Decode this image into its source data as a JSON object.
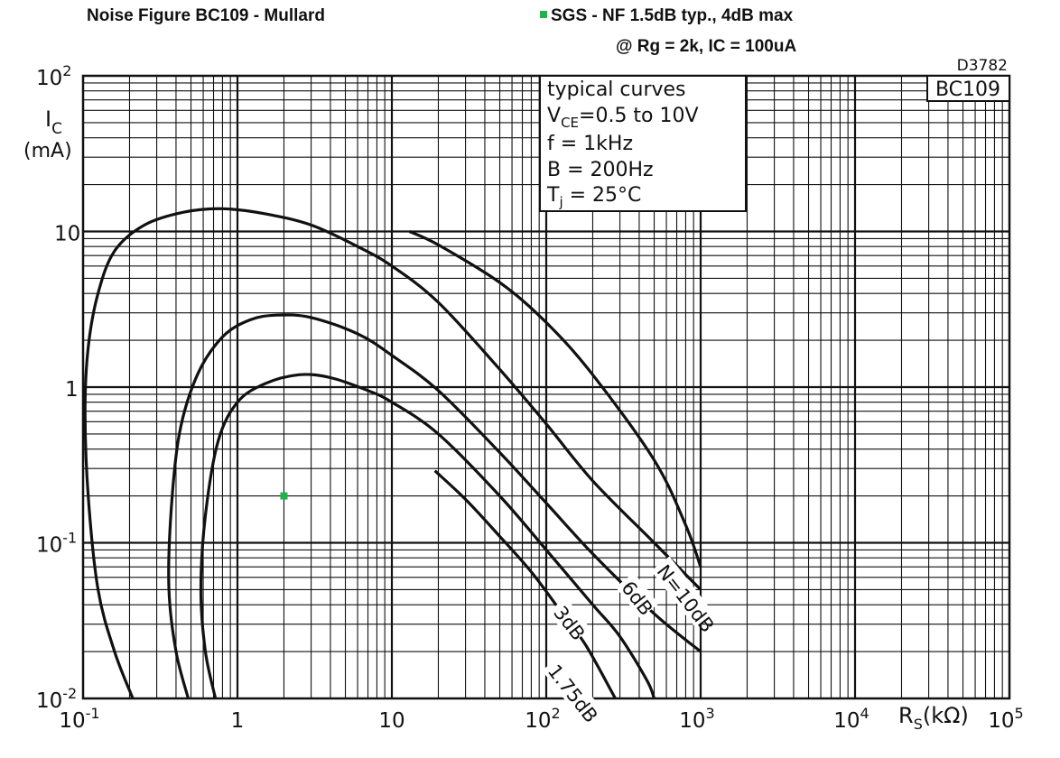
{
  "header": {
    "title": "Noise Figure BC109 - Mullard",
    "note_line1": "SGS - NF 1.5dB typ.,  4dB max",
    "note_line2": "@ Rg = 2k, IC = 100uA",
    "marker_color": "#22b14c"
  },
  "chart_data": {
    "type": "line",
    "code": "D3782",
    "device": "BC109",
    "xscale": "log",
    "yscale": "log",
    "xlim": [
      0.1,
      100000
    ],
    "ylim": [
      0.01,
      100
    ],
    "xlabel": "RS(kΩ)",
    "ylabel": "IC",
    "ylabel_unit": "(mA)",
    "xticks": [
      {
        "v": 0.1,
        "base": "10",
        "exp": "-1"
      },
      {
        "v": 1,
        "base": "1",
        "exp": ""
      },
      {
        "v": 10,
        "base": "10",
        "exp": ""
      },
      {
        "v": 100,
        "base": "10",
        "exp": "2"
      },
      {
        "v": 1000,
        "base": "10",
        "exp": "3"
      },
      {
        "v": 10000,
        "base": "10",
        "exp": "4"
      },
      {
        "v": 100000,
        "base": "10",
        "exp": "5"
      }
    ],
    "yticks": [
      {
        "v": 0.01,
        "base": "10",
        "exp": "-2"
      },
      {
        "v": 0.1,
        "base": "10",
        "exp": "-1"
      },
      {
        "v": 1,
        "base": "1",
        "exp": ""
      },
      {
        "v": 10,
        "base": "10",
        "exp": ""
      },
      {
        "v": 100,
        "base": "10",
        "exp": "2"
      }
    ],
    "grid": true,
    "conditions": {
      "line1": "typical curves",
      "vce_label": "V",
      "vce_sub": "CE",
      "vce_value": "=0.5 to 10V",
      "f": "f    = 1kHz",
      "b": "B   = 200Hz",
      "tj_label": "T",
      "tj_sub": "j",
      "tj_value": "  = 25°C"
    },
    "series": [
      {
        "name": "N=10dB",
        "points": [
          [
            0.21,
            0.01
          ],
          [
            0.16,
            0.02
          ],
          [
            0.125,
            0.05
          ],
          [
            0.108,
            0.2
          ],
          [
            0.103,
            0.7
          ],
          [
            0.108,
            1.8
          ],
          [
            0.125,
            4
          ],
          [
            0.16,
            7.5
          ],
          [
            0.25,
            11
          ],
          [
            0.45,
            13.3
          ],
          [
            0.8,
            14
          ],
          [
            1.5,
            13
          ],
          [
            3,
            11
          ],
          [
            6,
            8
          ],
          [
            10,
            6
          ],
          [
            20,
            3.5
          ],
          [
            50,
            1.3
          ],
          [
            100,
            0.58
          ],
          [
            200,
            0.25
          ],
          [
            500,
            0.1
          ],
          [
            1000,
            0.05
          ]
        ]
      },
      {
        "name": "N=10dB",
        "points": [
          [
            13,
            10
          ],
          [
            20,
            8.2
          ],
          [
            50,
            4.7
          ],
          [
            100,
            2.6
          ],
          [
            200,
            1.2
          ],
          [
            500,
            0.34
          ],
          [
            800,
            0.13
          ],
          [
            1000,
            0.07
          ]
        ]
      },
      {
        "name": "6dB",
        "points": [
          [
            0.48,
            0.01
          ],
          [
            0.4,
            0.02
          ],
          [
            0.36,
            0.05
          ],
          [
            0.37,
            0.15
          ],
          [
            0.42,
            0.5
          ],
          [
            0.55,
            1.2
          ],
          [
            0.8,
            2.1
          ],
          [
            1.2,
            2.7
          ],
          [
            1.8,
            2.9
          ],
          [
            3,
            2.8
          ],
          [
            6,
            2.2
          ],
          [
            10,
            1.6
          ],
          [
            20,
            0.95
          ],
          [
            50,
            0.38
          ],
          [
            100,
            0.18
          ],
          [
            200,
            0.085
          ],
          [
            500,
            0.035
          ],
          [
            1000,
            0.02
          ]
        ]
      },
      {
        "name": "3dB",
        "points": [
          [
            0.72,
            0.01
          ],
          [
            0.62,
            0.02
          ],
          [
            0.58,
            0.05
          ],
          [
            0.62,
            0.15
          ],
          [
            0.75,
            0.45
          ],
          [
            1,
            0.8
          ],
          [
            1.5,
            1.05
          ],
          [
            2.5,
            1.2
          ],
          [
            4,
            1.15
          ],
          [
            7,
            0.95
          ],
          [
            10,
            0.8
          ],
          [
            20,
            0.5
          ],
          [
            50,
            0.2
          ],
          [
            100,
            0.09
          ],
          [
            200,
            0.04
          ],
          [
            300,
            0.025
          ],
          [
            450,
            0.013
          ],
          [
            500,
            0.01
          ]
        ]
      },
      {
        "name": "1.75dB",
        "points": [
          [
            19,
            0.29
          ],
          [
            30,
            0.19
          ],
          [
            50,
            0.11
          ],
          [
            80,
            0.065
          ],
          [
            120,
            0.038
          ],
          [
            180,
            0.022
          ],
          [
            280,
            0.01
          ]
        ]
      }
    ],
    "curve_labels": [
      {
        "text": "N=10dB",
        "x": 560,
        "y": 0.07
      },
      {
        "text": "6dB",
        "x": 330,
        "y": 0.055
      },
      {
        "text": "3dB",
        "x": 120,
        "y": 0.038
      },
      {
        "text": "1.75dB",
        "x": 110,
        "y": 0.016
      }
    ],
    "marker": {
      "label": "SGS - NF 1.5dB typ.,  4dB max",
      "x": 2,
      "y": 0.2
    }
  }
}
